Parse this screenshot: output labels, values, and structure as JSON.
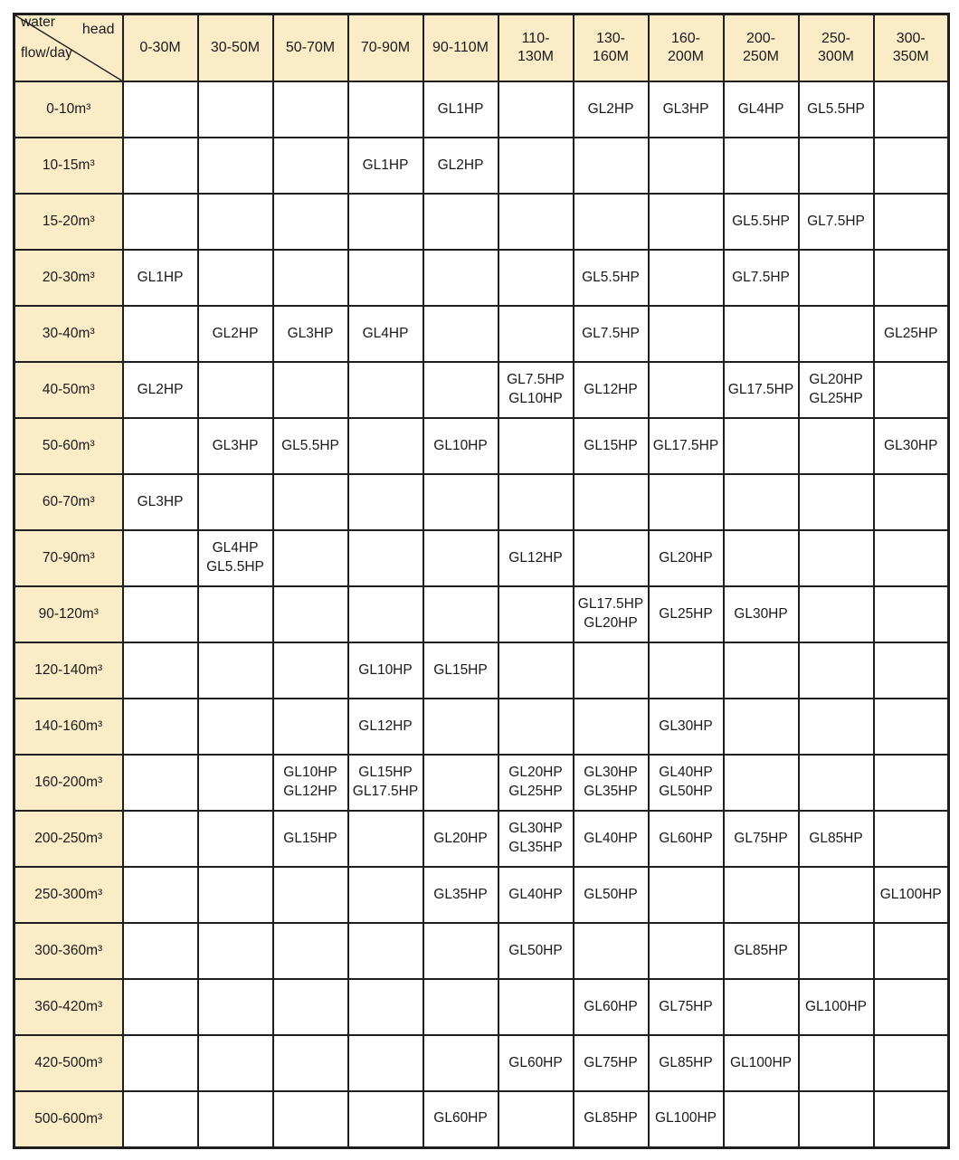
{
  "table": {
    "corner": {
      "head": "head",
      "flow_line1": "water",
      "flow_line2": "flow/day"
    },
    "colors": {
      "header_bg": "#f9ecc6",
      "border": "#1e1e1e",
      "cell_bg": "#ffffff",
      "text": "#1a1a1a"
    },
    "columns": [
      "0-30M",
      "30-50M",
      "50-70M",
      "70-90M",
      "90-110M",
      "110-\n130M",
      "130-\n160M",
      "160-\n200M",
      "200-\n250M",
      "250-\n300M",
      "300-\n350M"
    ],
    "rows": [
      {
        "label": "0-10m³",
        "cells": [
          "",
          "",
          "",
          "",
          "GL1HP",
          "",
          "GL2HP",
          "GL3HP",
          "GL4HP",
          "GL5.5HP",
          ""
        ]
      },
      {
        "label": "10-15m³",
        "cells": [
          "",
          "",
          "",
          "GL1HP",
          "GL2HP",
          "",
          "",
          "",
          "",
          "",
          ""
        ]
      },
      {
        "label": "15-20m³",
        "cells": [
          "",
          "",
          "",
          "",
          "",
          "",
          "",
          "",
          "GL5.5HP",
          "GL7.5HP",
          ""
        ]
      },
      {
        "label": "20-30m³",
        "cells": [
          "GL1HP",
          "",
          "",
          "",
          "",
          "",
          "GL5.5HP",
          "",
          "GL7.5HP",
          "",
          ""
        ]
      },
      {
        "label": "30-40m³",
        "cells": [
          "",
          "GL2HP",
          "GL3HP",
          "GL4HP",
          "",
          "",
          "GL7.5HP",
          "",
          "",
          "",
          "GL25HP"
        ]
      },
      {
        "label": "40-50m³",
        "cells": [
          "GL2HP",
          "",
          "",
          "",
          "",
          "GL7.5HP\nGL10HP",
          "GL12HP",
          "",
          "GL17.5HP",
          "GL20HP\nGL25HP",
          ""
        ]
      },
      {
        "label": "50-60m³",
        "cells": [
          "",
          "GL3HP",
          "GL5.5HP",
          "",
          "GL10HP",
          "",
          "GL15HP",
          "GL17.5HP",
          "",
          "",
          "GL30HP"
        ]
      },
      {
        "label": "60-70m³",
        "cells": [
          "GL3HP",
          "",
          "",
          "",
          "",
          "",
          "",
          "",
          "",
          "",
          ""
        ]
      },
      {
        "label": "70-90m³",
        "cells": [
          "",
          "GL4HP\nGL5.5HP",
          "",
          "",
          "",
          "GL12HP",
          "",
          "GL20HP",
          "",
          "",
          ""
        ]
      },
      {
        "label": "90-120m³",
        "cells": [
          "",
          "",
          "",
          "",
          "",
          "",
          "GL17.5HP\nGL20HP",
          "GL25HP",
          "GL30HP",
          "",
          ""
        ]
      },
      {
        "label": "120-140m³",
        "cells": [
          "",
          "",
          "",
          "GL10HP",
          "GL15HP",
          "",
          "",
          "",
          "",
          "",
          ""
        ]
      },
      {
        "label": "140-160m³",
        "cells": [
          "",
          "",
          "",
          "GL12HP",
          "",
          "",
          "",
          "GL30HP",
          "",
          "",
          ""
        ]
      },
      {
        "label": "160-200m³",
        "cells": [
          "",
          "",
          "GL10HP\nGL12HP",
          "GL15HP\nGL17.5HP",
          "",
          "GL20HP\nGL25HP",
          "GL30HP\nGL35HP",
          "GL40HP\nGL50HP",
          "",
          "",
          ""
        ]
      },
      {
        "label": "200-250m³",
        "cells": [
          "",
          "",
          "GL15HP",
          "",
          "GL20HP",
          "GL30HP\nGL35HP",
          "GL40HP",
          "GL60HP",
          "GL75HP",
          "GL85HP",
          ""
        ]
      },
      {
        "label": "250-300m³",
        "cells": [
          "",
          "",
          "",
          "",
          "GL35HP",
          "GL40HP",
          "GL50HP",
          "",
          "",
          "",
          "GL100HP"
        ]
      },
      {
        "label": "300-360m³",
        "cells": [
          "",
          "",
          "",
          "",
          "",
          "GL50HP",
          "",
          "",
          "GL85HP",
          "",
          ""
        ]
      },
      {
        "label": "360-420m³",
        "cells": [
          "",
          "",
          "",
          "",
          "",
          "",
          "GL60HP",
          "GL75HP",
          "",
          "GL100HP",
          ""
        ]
      },
      {
        "label": "420-500m³",
        "cells": [
          "",
          "",
          "",
          "",
          "",
          "GL60HP",
          "GL75HP",
          "GL85HP",
          "GL100HP",
          "",
          ""
        ]
      },
      {
        "label": "500-600m³",
        "cells": [
          "",
          "",
          "",
          "",
          "GL60HP",
          "",
          "GL85HP",
          "GL100HP",
          "",
          "",
          ""
        ]
      }
    ]
  }
}
